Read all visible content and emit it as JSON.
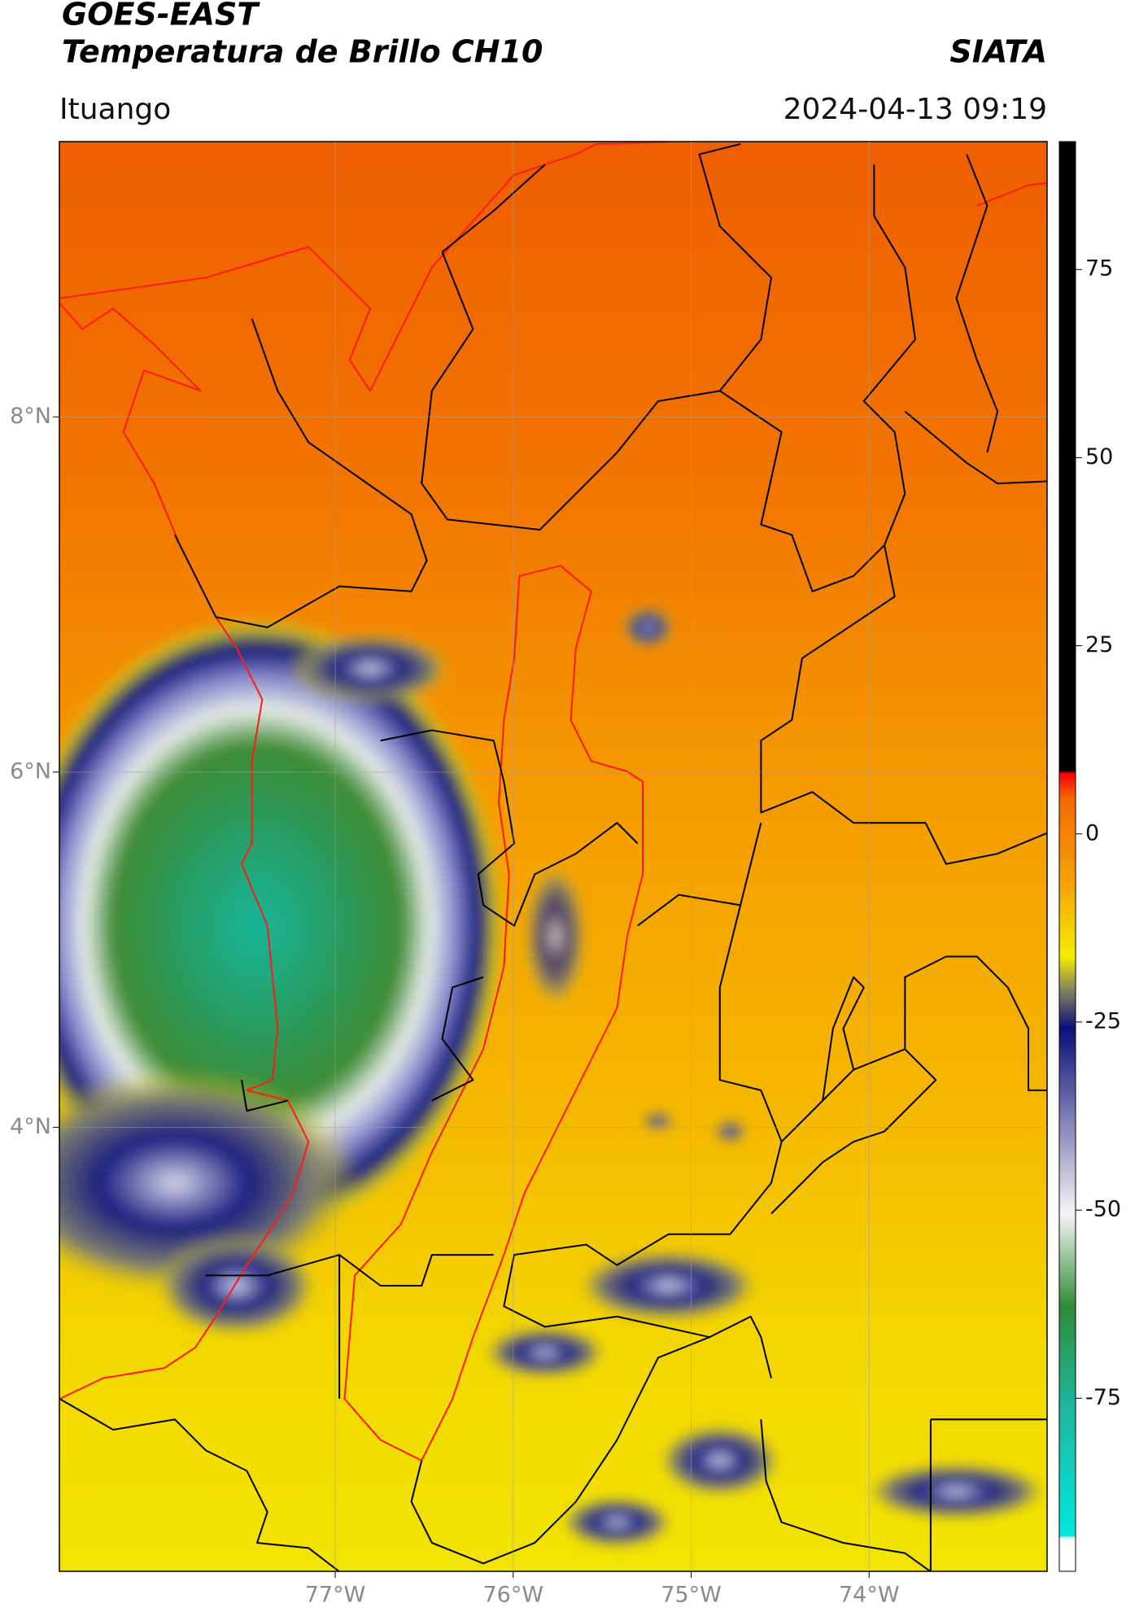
{
  "map": {
    "title": "GOES-EAST",
    "subtitle": "Temperatura de Brillo CH10",
    "source": "SIATA",
    "location": "Ituango",
    "timestamp": "2024-04-13 09:19",
    "xlim": [
      -78.55,
      -73.0
    ],
    "ylim": [
      1.5,
      9.55
    ],
    "xticks": [
      {
        "value": -77,
        "label": "77°W"
      },
      {
        "value": -76,
        "label": "76°W"
      },
      {
        "value": -75,
        "label": "75°W"
      },
      {
        "value": -74,
        "label": "74°W"
      }
    ],
    "yticks": [
      {
        "value": 8,
        "label": "8°N"
      },
      {
        "value": 6,
        "label": "6°N"
      },
      {
        "value": 4,
        "label": "4°N"
      }
    ],
    "grid": true,
    "colorbar": {
      "lim": [
        -98,
        92
      ],
      "ticks": [
        75,
        50,
        25,
        0,
        -25,
        -50,
        -75
      ]
    }
  }
}
